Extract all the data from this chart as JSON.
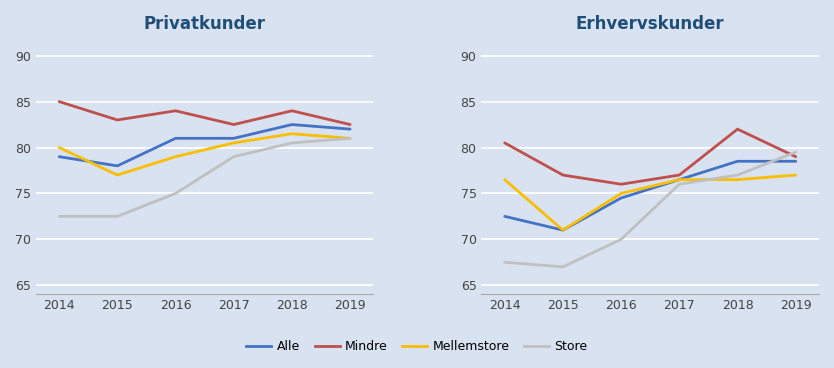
{
  "years": [
    2014,
    2015,
    2016,
    2017,
    2018,
    2019
  ],
  "privat": {
    "Alle": [
      79,
      78,
      81,
      81,
      82.5,
      82
    ],
    "Mindre": [
      85,
      83,
      84,
      82.5,
      84,
      82.5
    ],
    "Mellemstore": [
      80,
      77,
      79,
      80.5,
      81.5,
      81
    ],
    "Store": [
      72.5,
      72.5,
      75,
      79,
      80.5,
      81
    ]
  },
  "erhverv": {
    "Alle": [
      72.5,
      71,
      74.5,
      76.5,
      78.5,
      78.5
    ],
    "Mindre": [
      80.5,
      77,
      76,
      77,
      82,
      79
    ],
    "Mellemstore": [
      76.5,
      71,
      75,
      76.5,
      76.5,
      77
    ],
    "Store": [
      67.5,
      67,
      70,
      76,
      77,
      79.5
    ]
  },
  "colors": {
    "Alle": "#4472C4",
    "Mindre": "#C0504D",
    "Mellemstore": "#F9BE00",
    "Store": "#C0C0C0"
  },
  "title_privat": "Privatkunder",
  "title_erhverv": "Erhvervskunder",
  "ylim": [
    64,
    92
  ],
  "yticks": [
    65,
    70,
    75,
    80,
    85,
    90
  ],
  "title_color": "#1F4E79",
  "title_fontsize": 12,
  "legend_labels": [
    "Alle",
    "Mindre",
    "Mellemstore",
    "Store"
  ],
  "line_width": 2.0,
  "fig_bg_color": "#D9E2F0",
  "plot_bg_color": "#D9E2F0",
  "grid_color": "#FFFFFF",
  "spine_bottom_color": "#AAAAAA",
  "tick_color": "#444444",
  "tick_fontsize": 9
}
